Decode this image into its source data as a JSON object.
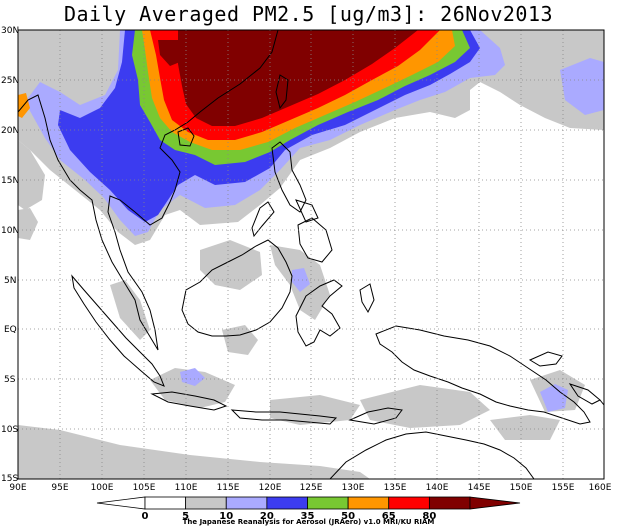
{
  "title": "Daily Averaged PM2.5 [ug/m3]: 26Nov2013",
  "credit": "The Japanese Reanalysis for Aerosol (JRAero) v1.0 MRI/KU RIAM",
  "lat_labels": [
    "30N",
    "25N",
    "20N",
    "15N",
    "10N",
    "5N",
    "EQ",
    "5S",
    "10S",
    "15S"
  ],
  "lon_labels": [
    "90E",
    "95E",
    "100E",
    "105E",
    "110E",
    "115E",
    "120E",
    "125E",
    "130E",
    "135E",
    "140E",
    "145E",
    "150E",
    "155E",
    "160E"
  ],
  "colorbar": {
    "labels": [
      "0",
      "5",
      "10",
      "20",
      "35",
      "50",
      "65",
      "80"
    ],
    "colors": [
      "#ffffff",
      "#c8c8c8",
      "#aaaaff",
      "#3c3cf0",
      "#78c832",
      "#ff9600",
      "#ff0000",
      "#800000"
    ]
  }
}
